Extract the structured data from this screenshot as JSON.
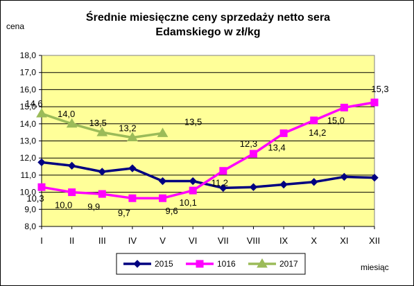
{
  "chart_data": {
    "type": "line",
    "title_line1": "Średnie miesięczne ceny sprzedaży netto sera",
    "title_line2": "Edamskiego w zł/kg",
    "ylabel": "cena",
    "xlabel": "miesiąc",
    "ylim": [
      8.0,
      18.0
    ],
    "ystep": 1.0,
    "yticks": [
      "8,0",
      "9,0",
      "10,0",
      "11,0",
      "12,0",
      "13,0",
      "14,0",
      "15,0",
      "16,0",
      "17,0",
      "18,0"
    ],
    "categories": [
      "I",
      "II",
      "III",
      "IV",
      "V",
      "VI",
      "VII",
      "VIII",
      "IX",
      "X",
      "XI",
      "XII"
    ],
    "grid": true,
    "plot_background": "#ffff99",
    "legend_position": "bottom",
    "series": [
      {
        "name": "2015",
        "color": "#000080",
        "marker": "diamond",
        "values": [
          11.75,
          11.55,
          11.2,
          11.4,
          10.65,
          10.65,
          10.25,
          10.3,
          10.45,
          10.6,
          10.9,
          10.85
        ],
        "labels": [
          "",
          "",
          "",
          "",
          "",
          "",
          "",
          "",
          "",
          "",
          "",
          ""
        ]
      },
      {
        "name": "1016",
        "color": "#ff00ff",
        "marker": "square",
        "values": [
          10.3,
          10.0,
          9.9,
          9.65,
          9.65,
          10.1,
          11.25,
          12.25,
          13.45,
          14.2,
          14.95,
          15.25
        ],
        "labels": [
          "10,3",
          "10,0",
          "9,9",
          "9,7",
          "9,6",
          "10,1",
          "11,2",
          "12,3",
          "13,4",
          "14,2",
          "15,0",
          "15,3"
        ]
      },
      {
        "name": "2017",
        "color": "#9bbb59",
        "marker": "triangle",
        "values": [
          14.6,
          14.0,
          13.5,
          13.2,
          13.45,
          null,
          null,
          null,
          null,
          null,
          null,
          null
        ],
        "labels": [
          "14,6",
          "14,0",
          "13,5",
          "13,2",
          "13,5",
          "",
          "",
          "",
          "",
          "",
          "",
          ""
        ]
      }
    ]
  }
}
